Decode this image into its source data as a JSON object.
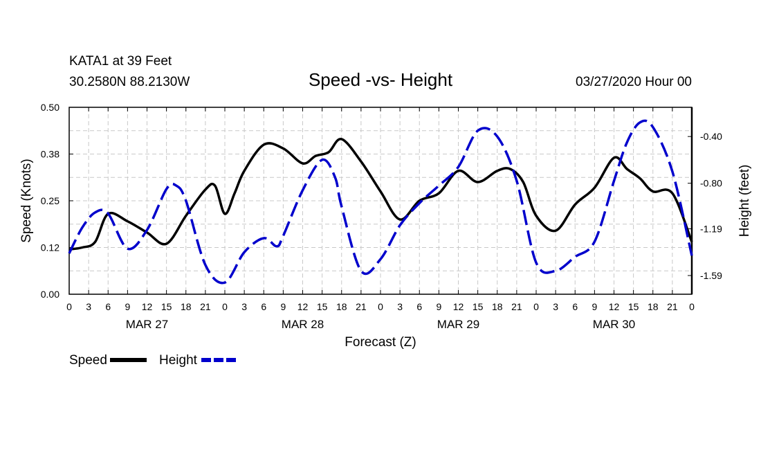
{
  "header": {
    "station": "KATA1 at 39 Feet",
    "coords": "30.2580N 88.2130W",
    "datetime": "03/27/2020 Hour 00"
  },
  "chart_data": {
    "type": "line",
    "title": "Speed -vs- Height",
    "xlabel": "Forecast (Z)",
    "ylabel": "Speed (Knots)",
    "y2label": "Height (feet)",
    "x_ticks": [
      "0",
      "3",
      "6",
      "9",
      "12",
      "15",
      "18",
      "21",
      "0",
      "3",
      "6",
      "9",
      "12",
      "15",
      "18",
      "21",
      "0",
      "3",
      "6",
      "9",
      "12",
      "15",
      "18",
      "21",
      "0",
      "3",
      "6",
      "9",
      "12",
      "15",
      "18",
      "21",
      "0"
    ],
    "x_range_hours": [
      0,
      96
    ],
    "day_labels": [
      {
        "label": "MAR 27",
        "hour": 12
      },
      {
        "label": "MAR 28",
        "hour": 36
      },
      {
        "label": "MAR 29",
        "hour": 60
      },
      {
        "label": "MAR 30",
        "hour": 84
      }
    ],
    "y_left": {
      "ticks": [
        "0.00",
        "0.12",
        "0.25",
        "0.38",
        "0.50"
      ],
      "range": [
        0,
        0.5
      ]
    },
    "y_right": {
      "ticks": [
        "-0.40",
        "-0.80",
        "-1.19",
        "-1.59"
      ],
      "range": [
        -1.75,
        -0.15
      ]
    },
    "grid": true,
    "series": [
      {
        "name": "Speed",
        "axis": "left",
        "color": "#000000",
        "dash": "solid",
        "x": [
          0,
          2,
          4,
          6,
          9,
          12,
          15,
          18,
          21,
          22.5,
          24,
          25.5,
          27,
          30,
          33,
          36,
          38,
          40,
          42,
          45,
          48,
          51,
          54,
          57,
          60,
          63,
          66,
          68,
          70,
          72,
          75,
          78,
          81,
          84,
          86,
          88,
          90,
          93,
          96
        ],
        "y": [
          0.12,
          0.125,
          0.14,
          0.215,
          0.195,
          0.165,
          0.135,
          0.21,
          0.28,
          0.29,
          0.215,
          0.27,
          0.33,
          0.4,
          0.39,
          0.35,
          0.37,
          0.38,
          0.415,
          0.355,
          0.275,
          0.2,
          0.25,
          0.27,
          0.33,
          0.3,
          0.33,
          0.335,
          0.3,
          0.21,
          0.17,
          0.24,
          0.285,
          0.365,
          0.335,
          0.31,
          0.275,
          0.27,
          0.14
        ]
      },
      {
        "name": "Height",
        "axis": "right",
        "color": "#0000cc",
        "dash": "dashed",
        "x": [
          0,
          2,
          4,
          6,
          9,
          12,
          15,
          16.5,
          18,
          21,
          24,
          27,
          30,
          32,
          33,
          36,
          39,
          41,
          42,
          45,
          48,
          51,
          54,
          57,
          60,
          63,
          66,
          69,
          72,
          75,
          78,
          81,
          84,
          86,
          88,
          90,
          93,
          96
        ],
        "y": [
          -1.4,
          -1.18,
          -1.05,
          -1.06,
          -1.36,
          -1.2,
          -0.85,
          -0.82,
          -0.95,
          -1.5,
          -1.65,
          -1.39,
          -1.27,
          -1.34,
          -1.25,
          -0.86,
          -0.6,
          -0.75,
          -1.0,
          -1.55,
          -1.45,
          -1.16,
          -0.97,
          -0.82,
          -0.66,
          -0.35,
          -0.4,
          -0.78,
          -1.48,
          -1.55,
          -1.43,
          -1.3,
          -0.78,
          -0.45,
          -0.28,
          -0.32,
          -0.7,
          -1.42
        ]
      }
    ],
    "legend": {
      "position": "bottom-left",
      "items": [
        "Speed",
        "Height"
      ]
    }
  }
}
